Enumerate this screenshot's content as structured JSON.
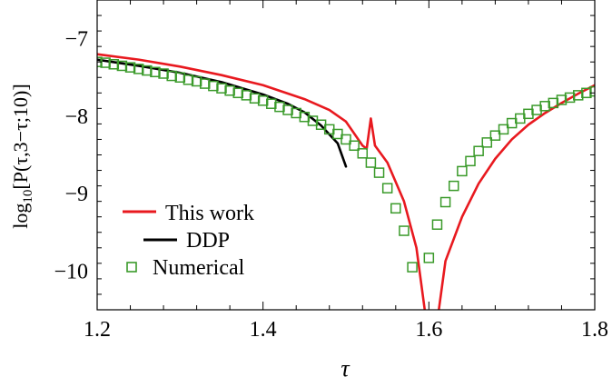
{
  "chart_data": {
    "type": "line",
    "title": "",
    "xlabel": "τ",
    "ylabel": {
      "prefix": "log",
      "subscript": "10",
      "suffix": "[P(τ,3−τ;10)]"
    },
    "xlim": [
      1.2,
      1.8
    ],
    "ylim": [
      -10.5,
      -6.5
    ],
    "x_ticks": [
      {
        "value": 1.2,
        "label": "1.2"
      },
      {
        "value": 1.4,
        "label": "1.4"
      },
      {
        "value": 1.6,
        "label": "1.6"
      },
      {
        "value": 1.8,
        "label": "1.8"
      }
    ],
    "y_ticks": [
      {
        "value": -7,
        "label": "−7"
      },
      {
        "value": -8,
        "label": "−8"
      },
      {
        "value": -9,
        "label": "−9"
      },
      {
        "value": -10,
        "label": "−10"
      }
    ],
    "grid": false,
    "legend_position": "lower-left",
    "series": [
      {
        "name": "This work",
        "style": "line",
        "color": "#e8191f",
        "segments": [
          [
            [
              1.2,
              -7.2
            ],
            [
              1.25,
              -7.27
            ],
            [
              1.3,
              -7.36
            ],
            [
              1.35,
              -7.47
            ],
            [
              1.4,
              -7.6
            ],
            [
              1.45,
              -7.78
            ],
            [
              1.48,
              -7.92
            ],
            [
              1.5,
              -8.07
            ],
            [
              1.52,
              -8.38
            ],
            [
              1.525,
              -8.42
            ],
            [
              1.53,
              -8.03
            ],
            [
              1.535,
              -8.38
            ],
            [
              1.55,
              -8.6
            ],
            [
              1.57,
              -9.1
            ],
            [
              1.585,
              -9.7
            ],
            [
              1.595,
              -10.5
            ]
          ],
          [
            [
              1.612,
              -10.5
            ],
            [
              1.62,
              -9.87
            ],
            [
              1.64,
              -9.3
            ],
            [
              1.66,
              -8.87
            ],
            [
              1.68,
              -8.55
            ],
            [
              1.7,
              -8.3
            ],
            [
              1.72,
              -8.11
            ],
            [
              1.74,
              -7.96
            ],
            [
              1.76,
              -7.83
            ],
            [
              1.78,
              -7.71
            ],
            [
              1.8,
              -7.6
            ]
          ]
        ]
      },
      {
        "name": "DDP",
        "style": "line",
        "color": "#000000",
        "segments": [
          [
            [
              1.2,
              -7.27
            ],
            [
              1.25,
              -7.35
            ],
            [
              1.3,
              -7.44
            ],
            [
              1.35,
              -7.56
            ],
            [
              1.4,
              -7.72
            ],
            [
              1.43,
              -7.84
            ],
            [
              1.45,
              -7.95
            ],
            [
              1.47,
              -8.12
            ],
            [
              1.49,
              -8.35
            ],
            [
              1.5,
              -8.65
            ]
          ]
        ]
      },
      {
        "name": "Numerical",
        "style": "markers",
        "marker": "open-square",
        "color": "#3a9a2a",
        "points": [
          [
            1.2,
            -7.3
          ],
          [
            1.21,
            -7.31
          ],
          [
            1.22,
            -7.33
          ],
          [
            1.23,
            -7.35
          ],
          [
            1.24,
            -7.37
          ],
          [
            1.25,
            -7.39
          ],
          [
            1.26,
            -7.41
          ],
          [
            1.27,
            -7.43
          ],
          [
            1.28,
            -7.45
          ],
          [
            1.29,
            -7.48
          ],
          [
            1.3,
            -7.5
          ],
          [
            1.31,
            -7.53
          ],
          [
            1.32,
            -7.55
          ],
          [
            1.33,
            -7.58
          ],
          [
            1.34,
            -7.61
          ],
          [
            1.35,
            -7.64
          ],
          [
            1.36,
            -7.67
          ],
          [
            1.37,
            -7.7
          ],
          [
            1.38,
            -7.73
          ],
          [
            1.39,
            -7.77
          ],
          [
            1.4,
            -7.8
          ],
          [
            1.41,
            -7.84
          ],
          [
            1.42,
            -7.88
          ],
          [
            1.43,
            -7.92
          ],
          [
            1.44,
            -7.96
          ],
          [
            1.45,
            -8.01
          ],
          [
            1.46,
            -8.06
          ],
          [
            1.47,
            -8.11
          ],
          [
            1.48,
            -8.17
          ],
          [
            1.49,
            -8.23
          ],
          [
            1.5,
            -8.3
          ],
          [
            1.51,
            -8.38
          ],
          [
            1.52,
            -8.48
          ],
          [
            1.53,
            -8.6
          ],
          [
            1.54,
            -8.73
          ],
          [
            1.55,
            -8.93
          ],
          [
            1.56,
            -9.19
          ],
          [
            1.57,
            -9.48
          ],
          [
            1.58,
            -9.95
          ],
          [
            1.6,
            -9.83
          ],
          [
            1.61,
            -9.4
          ],
          [
            1.62,
            -9.11
          ],
          [
            1.63,
            -8.9
          ],
          [
            1.64,
            -8.71
          ],
          [
            1.65,
            -8.58
          ],
          [
            1.66,
            -8.45
          ],
          [
            1.67,
            -8.34
          ],
          [
            1.68,
            -8.25
          ],
          [
            1.69,
            -8.17
          ],
          [
            1.7,
            -8.09
          ],
          [
            1.71,
            -8.03
          ],
          [
            1.72,
            -7.97
          ],
          [
            1.73,
            -7.92
          ],
          [
            1.74,
            -7.87
          ],
          [
            1.75,
            -7.83
          ],
          [
            1.76,
            -7.79
          ],
          [
            1.77,
            -7.76
          ],
          [
            1.78,
            -7.73
          ],
          [
            1.79,
            -7.7
          ],
          [
            1.8,
            -7.68
          ]
        ]
      }
    ]
  }
}
